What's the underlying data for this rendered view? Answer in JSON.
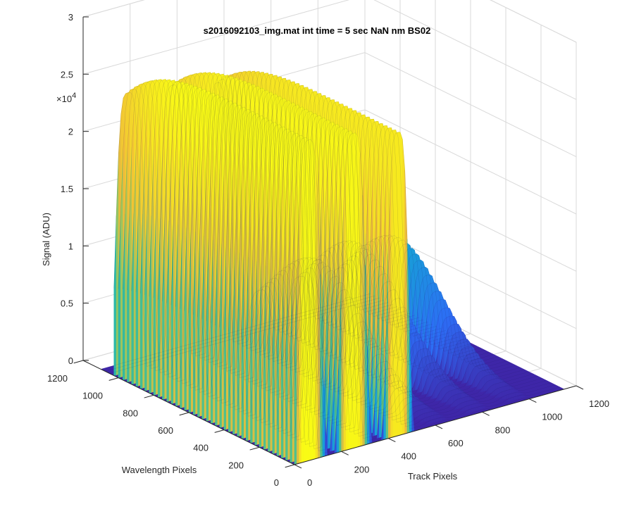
{
  "chart_data": {
    "type": "surface3d",
    "title": "s2016092103_img.mat int time = 5 sec  NaN nm BS02",
    "xlabel": "Track Pixels",
    "ylabel": "Wavelength Pixels",
    "zlabel": "Signal (ADU)",
    "z_multiplier_label": "×10",
    "z_multiplier_exponent": "4",
    "xlim": [
      0,
      1200
    ],
    "ylim": [
      0,
      1200
    ],
    "zlim": [
      0,
      30000
    ],
    "x_ticks": [
      "0",
      "200",
      "400",
      "600",
      "800",
      "1000",
      "1200"
    ],
    "y_ticks": [
      "0",
      "200",
      "400",
      "600",
      "800",
      "1000",
      "1200"
    ],
    "z_ticks": [
      "0",
      "0.5",
      "1",
      "1.5",
      "2",
      "2.5",
      "3"
    ],
    "grid": true,
    "colormap": [
      "#3e26a8",
      "#2d6cf5",
      "#16a3d6",
      "#2ab8a8",
      "#80c96a",
      "#f0bb3a",
      "#f9fb15"
    ],
    "bands": [
      {
        "x_center": 60,
        "width": 130,
        "peak": 28000
      },
      {
        "x_center": 250,
        "width": 130,
        "peak": 27500
      },
      {
        "x_center": 440,
        "width": 110,
        "peak": 26500
      },
      {
        "x_center": 620,
        "width": 110,
        "peak": 9000
      },
      {
        "x_center": 790,
        "width": 110,
        "peak": 9500
      },
      {
        "x_center": 960,
        "width": 110,
        "peak": 9000
      }
    ],
    "wavelength_extent": [
      0,
      1050
    ]
  }
}
